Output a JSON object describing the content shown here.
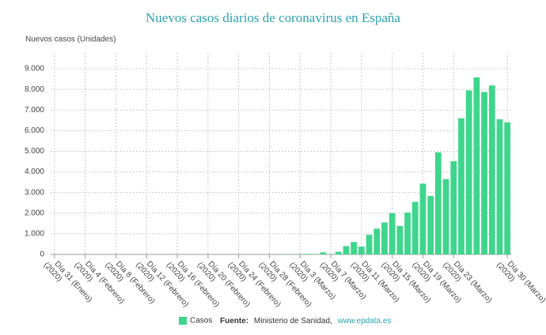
{
  "chart_data": {
    "type": "bar",
    "title": "Nuevos casos diarios de coronavirus en España",
    "y_label": "Nuevos casos (Unidades)",
    "categories": [
      "Día 31 (Enero) (2020)",
      null,
      null,
      null,
      "Día 4 (Febrero) (2020)",
      null,
      null,
      null,
      "Día 8 (Febrero) (2020)",
      null,
      null,
      null,
      "Día 12 (Febrero) (2020)",
      null,
      null,
      null,
      "Día 16 (Febrero) (2020)",
      null,
      null,
      null,
      "Día 20 (Febrero) (2020)",
      null,
      null,
      null,
      "Día 24 (Febrero) (2020)",
      null,
      null,
      null,
      "Día 28 (Febrero) (2020)",
      null,
      null,
      null,
      "Día 3 (Marzo) (2020)",
      null,
      null,
      null,
      "Día 7 (Marzo) (2020)",
      null,
      null,
      null,
      "Día 11 (Marzo) (2020)",
      null,
      null,
      null,
      "Día 15 (Marzo) (2020)",
      null,
      null,
      null,
      "Día 19 (Marzo) (2020)",
      null,
      null,
      null,
      "Día 23 (Marzo) (2020)",
      null,
      null,
      null,
      null,
      null,
      null,
      "Día 30 (Marzo) (2020)"
    ],
    "series": [
      {
        "name": "Casos",
        "color": "#3dd68c",
        "values": [
          0,
          0,
          0,
          0,
          0,
          0,
          0,
          0,
          0,
          0,
          0,
          0,
          0,
          0,
          0,
          0,
          0,
          0,
          0,
          0,
          0,
          0,
          0,
          0,
          0,
          0,
          0,
          0,
          0,
          2,
          13,
          10,
          15,
          30,
          20,
          100,
          20,
          130,
          400,
          600,
          380,
          950,
          1250,
          1550,
          2000,
          1380,
          2030,
          2550,
          3430,
          2830,
          4950,
          3650,
          4520,
          6600,
          7950,
          8580,
          7870,
          8190,
          6550,
          6400
        ]
      }
    ],
    "ylim": [
      0,
      9000
    ],
    "yticks": [
      0,
      {
        "value": 1000,
        "label": "1.000"
      },
      {
        "value": 2000,
        "label": "2.000"
      },
      {
        "value": 3000,
        "label": "3.000"
      },
      {
        "value": 4000,
        "label": "4.000"
      },
      {
        "value": 5000,
        "label": "5.000"
      },
      {
        "value": 6000,
        "label": "6.000"
      },
      {
        "value": 7000,
        "label": "7.000"
      },
      {
        "value": 8000,
        "label": "8.000"
      },
      {
        "value": 9000,
        "label": "9.000"
      }
    ],
    "grid": true,
    "source_label": "Fuente:",
    "source_text": "Ministerio de Sanidad,",
    "source_link": "www.epdata.es"
  }
}
